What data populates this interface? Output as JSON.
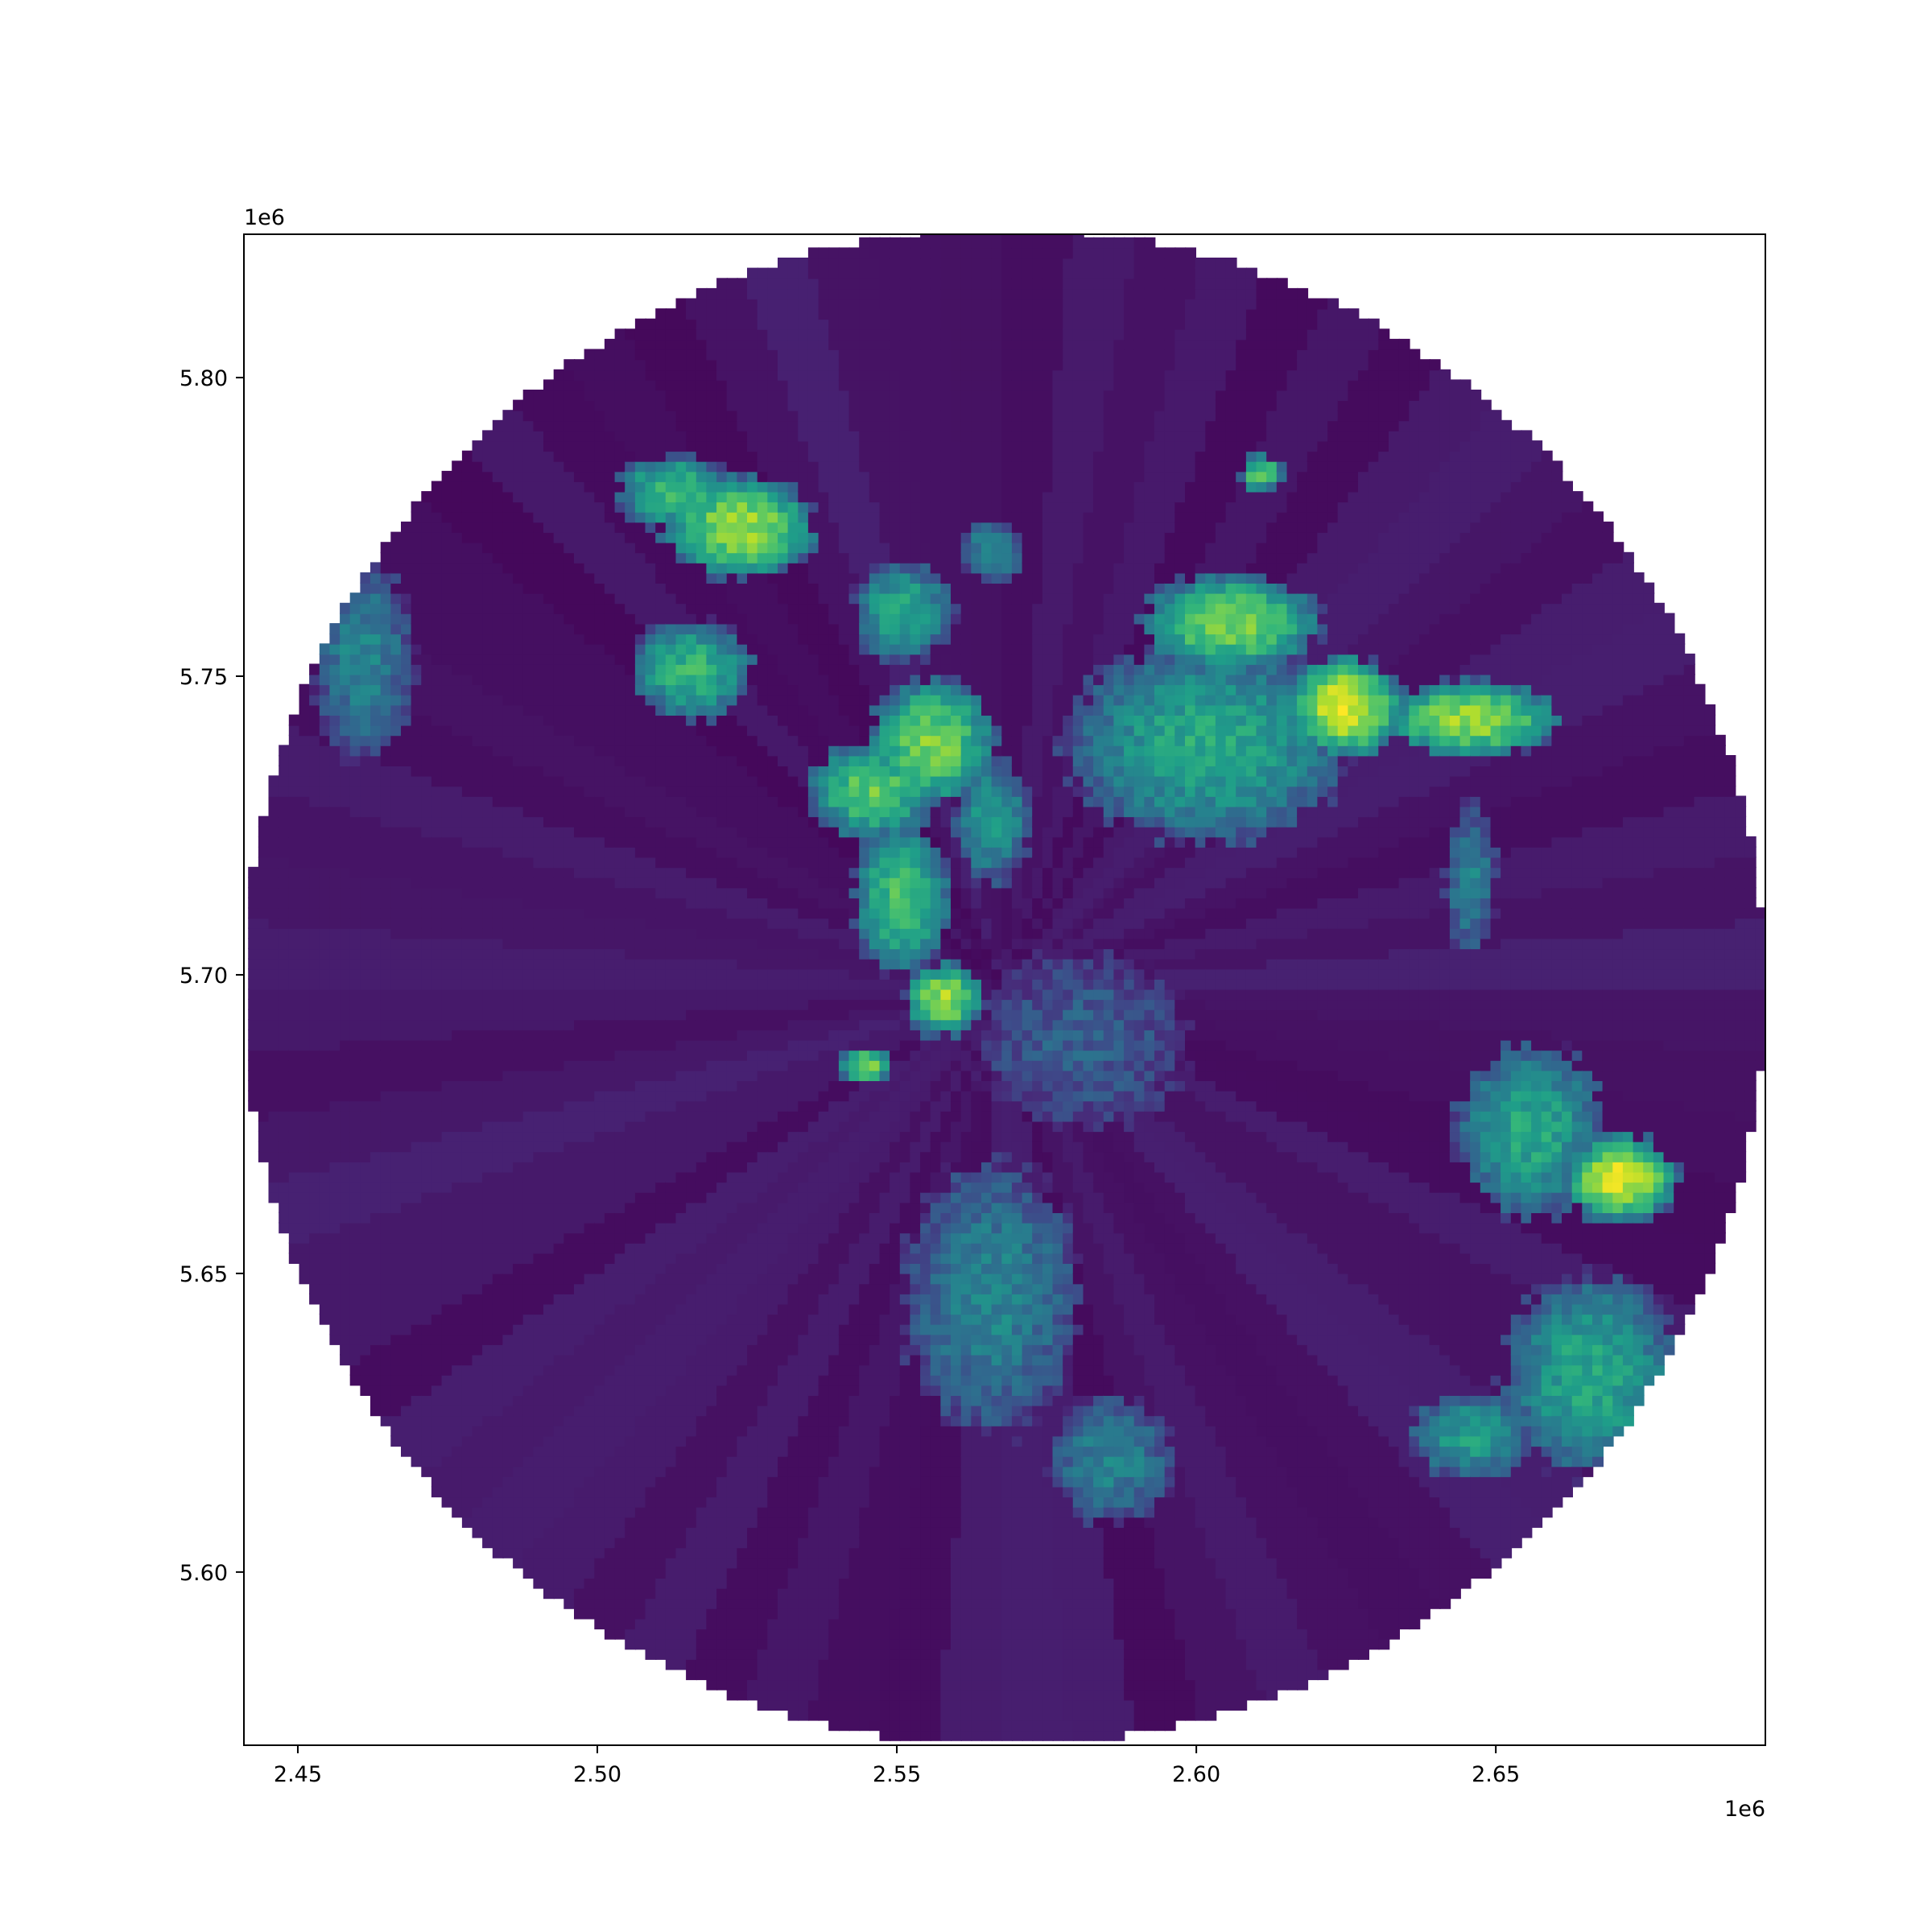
{
  "chart_data": {
    "type": "heatmap",
    "title": "",
    "xlabel": "",
    "ylabel": "",
    "colormap": "viridis",
    "xlim": [
      2441000,
      2695000
    ],
    "ylim": [
      5571000,
      5824000
    ],
    "x_offset_text": "1e6",
    "y_offset_text": "1e6",
    "x_ticks": [
      {
        "value": 2450000,
        "label": "2.45"
      },
      {
        "value": 2500000,
        "label": "2.50"
      },
      {
        "value": 2550000,
        "label": "2.55"
      },
      {
        "value": 2600000,
        "label": "2.60"
      },
      {
        "value": 2650000,
        "label": "2.65"
      }
    ],
    "y_ticks": [
      {
        "value": 5600000,
        "label": "5.60"
      },
      {
        "value": 5650000,
        "label": "5.65"
      },
      {
        "value": 5700000,
        "label": "5.70"
      },
      {
        "value": 5750000,
        "label": "5.75"
      },
      {
        "value": 5800000,
        "label": "5.80"
      }
    ],
    "radar_center": [
      2567000,
      5697000
    ],
    "radar_radius": 127000,
    "background_level": 0.02,
    "echo_regions": [
      {
        "x": 2523000,
        "y": 5774000,
        "rx": 12000,
        "ry": 8000,
        "peak": 0.85
      },
      {
        "x": 2512000,
        "y": 5780000,
        "rx": 9000,
        "ry": 6000,
        "peak": 0.7
      },
      {
        "x": 2515000,
        "y": 5750000,
        "rx": 10000,
        "ry": 8000,
        "peak": 0.65
      },
      {
        "x": 2550000,
        "y": 5760000,
        "rx": 8000,
        "ry": 8000,
        "peak": 0.6
      },
      {
        "x": 2555000,
        "y": 5738000,
        "rx": 10000,
        "ry": 10000,
        "peak": 0.8
      },
      {
        "x": 2545000,
        "y": 5730000,
        "rx": 10000,
        "ry": 8000,
        "peak": 0.75
      },
      {
        "x": 2550000,
        "y": 5712000,
        "rx": 8000,
        "ry": 12000,
        "peak": 0.7
      },
      {
        "x": 2557000,
        "y": 5695000,
        "rx": 6000,
        "ry": 6000,
        "peak": 0.85
      },
      {
        "x": 2565000,
        "y": 5725000,
        "rx": 6000,
        "ry": 10000,
        "peak": 0.55
      },
      {
        "x": 2544000,
        "y": 5684000,
        "rx": 4000,
        "ry": 3000,
        "peak": 0.8
      },
      {
        "x": 2601000,
        "y": 5738000,
        "rx": 22000,
        "ry": 16000,
        "peak": 0.6
      },
      {
        "x": 2605000,
        "y": 5758000,
        "rx": 14000,
        "ry": 8000,
        "peak": 0.8
      },
      {
        "x": 2624000,
        "y": 5744000,
        "rx": 9000,
        "ry": 8000,
        "peak": 0.95
      },
      {
        "x": 2645000,
        "y": 5742000,
        "rx": 14000,
        "ry": 6000,
        "peak": 0.85
      },
      {
        "x": 2565000,
        "y": 5770000,
        "rx": 5000,
        "ry": 5000,
        "peak": 0.5
      },
      {
        "x": 2610000,
        "y": 5783000,
        "rx": 3500,
        "ry": 3000,
        "peak": 0.75
      },
      {
        "x": 2460000,
        "y": 5752000,
        "rx": 8000,
        "ry": 16000,
        "peak": 0.45
      },
      {
        "x": 2580000,
        "y": 5688000,
        "rx": 17000,
        "ry": 14000,
        "peak": 0.3
      },
      {
        "x": 2565000,
        "y": 5645000,
        "rx": 14000,
        "ry": 22000,
        "peak": 0.45
      },
      {
        "x": 2585000,
        "y": 5618000,
        "rx": 10000,
        "ry": 10000,
        "peak": 0.45
      },
      {
        "x": 2655000,
        "y": 5673000,
        "rx": 12000,
        "ry": 14000,
        "peak": 0.6
      },
      {
        "x": 2670000,
        "y": 5665000,
        "rx": 9000,
        "ry": 7000,
        "peak": 0.95
      },
      {
        "x": 2665000,
        "y": 5632000,
        "rx": 14000,
        "ry": 16000,
        "peak": 0.6
      },
      {
        "x": 2645000,
        "y": 5622000,
        "rx": 10000,
        "ry": 7000,
        "peak": 0.55
      },
      {
        "x": 2645000,
        "y": 5715000,
        "rx": 4000,
        "ry": 12000,
        "peak": 0.45
      }
    ]
  }
}
